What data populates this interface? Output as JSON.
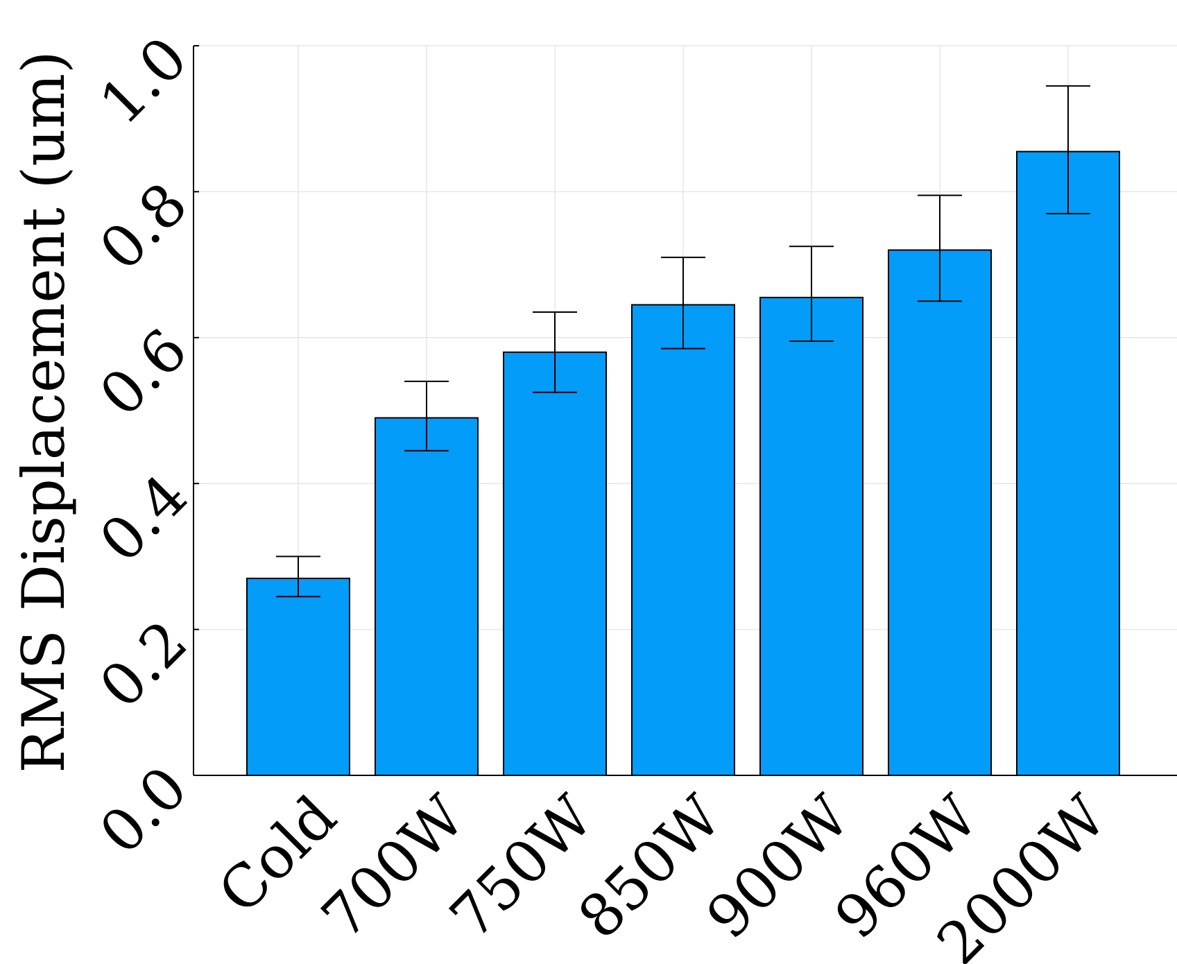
{
  "chart_data": {
    "type": "bar",
    "title": "",
    "xlabel": "",
    "ylabel": "RMS Displacement (um)",
    "categories": [
      "Cold",
      "700W",
      "750W",
      "850W",
      "900W",
      "960W",
      "2000W"
    ],
    "values": [
      0.27,
      0.49,
      0.58,
      0.645,
      0.655,
      0.72,
      0.855
    ],
    "error_low": [
      0.245,
      0.445,
      0.525,
      0.585,
      0.595,
      0.65,
      0.77
    ],
    "error_high": [
      0.3,
      0.54,
      0.635,
      0.71,
      0.725,
      0.795,
      0.945
    ],
    "ylim": [
      0,
      1.0
    ],
    "yticks": [
      "0.0",
      "0.2",
      "0.4",
      "0.6",
      "0.8",
      "1.0"
    ],
    "grid": true,
    "legend": "none",
    "bar_color": "#039cf9"
  }
}
